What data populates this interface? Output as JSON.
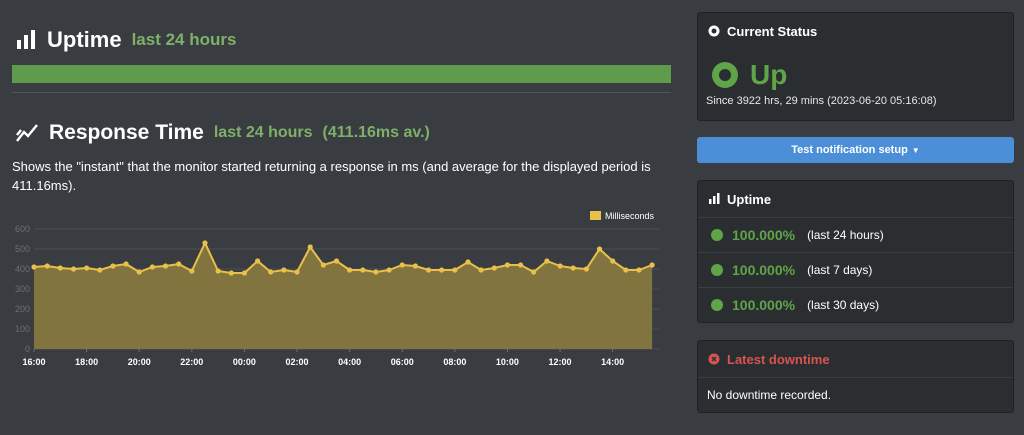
{
  "uptime_section": {
    "title": "Uptime",
    "subtitle": "last 24 hours",
    "percent": 100
  },
  "response_section": {
    "title": "Response Time",
    "subtitle": "last 24 hours",
    "average": "(411.16ms av.)",
    "description": "Shows the \"instant\" that the monitor started returning a response in ms (and average for the displayed period is 411.16ms)."
  },
  "chart_data": {
    "type": "area",
    "legend": "Milliseconds",
    "legend_position": "top-right",
    "grid": true,
    "ylim": [
      0,
      600
    ],
    "yticks": [
      "0",
      "100",
      "200",
      "300",
      "400",
      "500",
      "600"
    ],
    "xtick_labels": [
      "16:00",
      "18:00",
      "20:00",
      "22:00",
      "00:00",
      "02:00",
      "04:00",
      "06:00",
      "08:00",
      "10:00",
      "12:00",
      "14:00"
    ],
    "x_range_hours": [
      16,
      39.8
    ],
    "x_hours": [
      16,
      16.5,
      17,
      17.5,
      18,
      18.5,
      19,
      19.5,
      20,
      20.5,
      21,
      21.5,
      22,
      22.5,
      23,
      23.5,
      24,
      24.5,
      25,
      25.5,
      26,
      26.5,
      27,
      27.5,
      28,
      28.5,
      29,
      29.5,
      30,
      30.5,
      31,
      31.5,
      32,
      32.5,
      33,
      33.5,
      34,
      34.5,
      35,
      35.5,
      36,
      36.5,
      37,
      37.5,
      38,
      38.5,
      39,
      39.5
    ],
    "values": [
      410,
      415,
      405,
      400,
      405,
      395,
      415,
      425,
      385,
      410,
      415,
      425,
      390,
      530,
      390,
      380,
      380,
      440,
      385,
      395,
      385,
      510,
      420,
      440,
      395,
      395,
      385,
      395,
      420,
      415,
      395,
      395,
      395,
      435,
      395,
      405,
      420,
      420,
      385,
      440,
      415,
      405,
      400,
      500,
      440,
      395,
      395,
      420
    ],
    "line_color": "#e8c04a",
    "fill_color": "#8a7a3e"
  },
  "current_status": {
    "title": "Current Status",
    "status": "Up",
    "since": "Since 3922 hrs, 29 mins (2023-06-20 05:16:08)"
  },
  "notification_button": {
    "label": "Test notification setup"
  },
  "uptime_panel": {
    "title": "Uptime",
    "rows": [
      {
        "percent": "100.000%",
        "range": "(last 24 hours)"
      },
      {
        "percent": "100.000%",
        "range": "(last 7 days)"
      },
      {
        "percent": "100.000%",
        "range": "(last 30 days)"
      }
    ]
  },
  "latest_downtime": {
    "title": "Latest downtime",
    "text": "No downtime recorded."
  },
  "colors": {
    "green": "#5fa448",
    "light_green": "#7fb069",
    "blue": "#4a8fd8",
    "red": "#d9534f",
    "background": "#393c40"
  },
  "icons": {
    "uptime": "bar-chart-icon",
    "response": "line-chart-icon",
    "status": "dot-circle-icon",
    "uptime_row": "badge-check-icon",
    "downtime": "times-circle-icon"
  }
}
